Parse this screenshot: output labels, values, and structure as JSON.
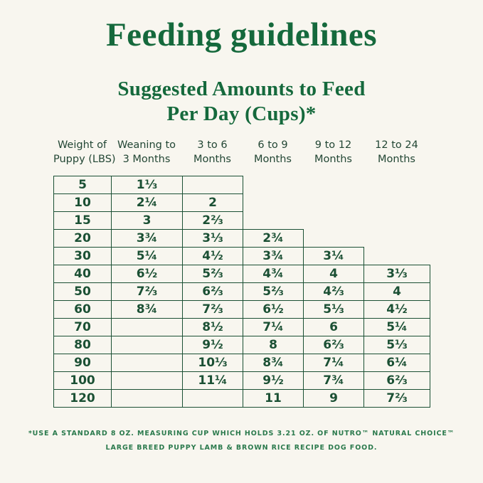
{
  "header": {
    "title": "Feeding guidelines",
    "subtitle_line1": "Suggested Amounts to Feed",
    "subtitle_line2": "Per Day (Cups)*"
  },
  "footnote": {
    "line1": "*USE A STANDARD 8 OZ. MEASURING CUP WHICH HOLDS 3.21 OZ. OF NUTRO™ NATURAL CHOICE™",
    "line2": "LARGE BREED PUPPY LAMB & BROWN RICE RECIPE DOG FOOD."
  },
  "colors": {
    "background": "#F8F6EF",
    "title_green": "#15693C",
    "table_green": "#1B5034",
    "footnote_green": "#2B7A4D"
  },
  "chart_data": {
    "type": "table",
    "title": "Feeding guidelines",
    "subtitle": "Suggested Amounts to Feed Per Day (Cups)*",
    "columns": [
      "Weight of Puppy (LBS)",
      "Weaning to 3 Months",
      "3 to 6 Months",
      "6 to 9 Months",
      "9 to 12 Months",
      "12 to 24 Months"
    ],
    "header_lines": [
      [
        "Weight of",
        "Puppy (LBS)"
      ],
      [
        "Weaning to",
        "3 Months"
      ],
      [
        "3 to 6",
        "Months"
      ],
      [
        "6 to 9",
        "Months"
      ],
      [
        "9 to 12",
        "Months"
      ],
      [
        "12 to 24",
        "Months"
      ]
    ],
    "rows": [
      {
        "weight": "5",
        "values": [
          "1⅓",
          "",
          null,
          null,
          null
        ]
      },
      {
        "weight": "10",
        "values": [
          "2¼",
          "2",
          null,
          null,
          null
        ]
      },
      {
        "weight": "15",
        "values": [
          "3",
          "2⅔",
          null,
          null,
          null
        ]
      },
      {
        "weight": "20",
        "values": [
          "3¾",
          "3⅓",
          "2¾",
          null,
          null
        ]
      },
      {
        "weight": "30",
        "values": [
          "5¼",
          "4½",
          "3¾",
          "3¼",
          null
        ]
      },
      {
        "weight": "40",
        "values": [
          "6½",
          "5⅔",
          "4¾",
          "4",
          "3⅓"
        ]
      },
      {
        "weight": "50",
        "values": [
          "7⅔",
          "6⅔",
          "5⅔",
          "4⅔",
          "4"
        ]
      },
      {
        "weight": "60",
        "values": [
          "8¾",
          "7⅔",
          "6½",
          "5⅓",
          "4½"
        ]
      },
      {
        "weight": "70",
        "values": [
          "",
          "8½",
          "7¼",
          "6",
          "5¼"
        ]
      },
      {
        "weight": "80",
        "values": [
          "",
          "9½",
          "8",
          "6⅔",
          "5⅓"
        ]
      },
      {
        "weight": "90",
        "values": [
          "",
          "10⅓",
          "8¾",
          "7¼",
          "6¼"
        ]
      },
      {
        "weight": "100",
        "values": [
          "",
          "11¼",
          "9½",
          "7¾",
          "6⅔"
        ]
      },
      {
        "weight": "120",
        "values": [
          "",
          "",
          "11",
          "9",
          "7⅔"
        ]
      }
    ],
    "footnote": "*USE A STANDARD 8 OZ. MEASURING CUP WHICH HOLDS 3.21 OZ. OF NUTRO™ NATURAL CHOICE™ LARGE BREED PUPPY LAMB & BROWN RICE RECIPE DOG FOOD."
  }
}
